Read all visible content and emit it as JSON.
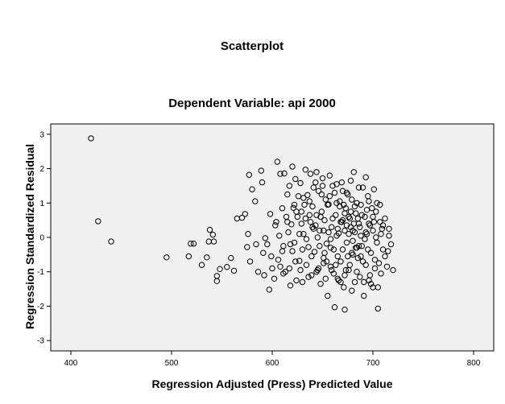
{
  "chart_data": {
    "type": "scatter",
    "title": "Scatterplot",
    "subtitle": "Dependent Variable: api 2000",
    "xlabel": "Regression Adjusted (Press) Predicted Value",
    "ylabel": "Regression Standardized Residual",
    "xlim": [
      380,
      820
    ],
    "ylim": [
      -3.3,
      3.3
    ],
    "xticks": [
      400,
      500,
      600,
      700,
      800
    ],
    "yticks": [
      -3,
      -2,
      -1,
      0,
      1,
      2,
      3
    ],
    "grid": false,
    "marker": "open-circle",
    "colors": {
      "plot_background": "#f0f0f0",
      "marker": "#000000"
    },
    "points": [
      [
        420,
        2.88
      ],
      [
        427,
        0.47
      ],
      [
        440,
        -0.12
      ],
      [
        495,
        -0.58
      ],
      [
        517,
        -0.55
      ],
      [
        519,
        -0.18
      ],
      [
        522,
        -0.18
      ],
      [
        530,
        -0.8
      ],
      [
        535,
        -0.58
      ],
      [
        537,
        -0.12
      ],
      [
        538,
        0.22
      ],
      [
        541,
        0.08
      ],
      [
        542,
        -0.12
      ],
      [
        545,
        -1.12
      ],
      [
        545,
        -1.27
      ],
      [
        548,
        -0.92
      ],
      [
        555,
        -0.86
      ],
      [
        559,
        -0.6
      ],
      [
        562,
        -0.97
      ],
      [
        565,
        0.55
      ],
      [
        570,
        0.57
      ],
      [
        573,
        0.68
      ],
      [
        575,
        -0.28
      ],
      [
        576,
        0.1
      ],
      [
        577,
        1.82
      ],
      [
        578,
        -0.7
      ],
      [
        580,
        1.4
      ],
      [
        583,
        1.05
      ],
      [
        584,
        -0.2
      ],
      [
        586,
        -1.0
      ],
      [
        589,
        1.94
      ],
      [
        590,
        1.6
      ],
      [
        591,
        -0.45
      ],
      [
        593,
        -0.02
      ],
      [
        595,
        -0.2
      ],
      [
        597,
        -1.52
      ],
      [
        598,
        0.68
      ],
      [
        600,
        -0.9
      ],
      [
        602,
        -1.2
      ],
      [
        603,
        0.35
      ],
      [
        605,
        2.2
      ],
      [
        606,
        -0.65
      ],
      [
        607,
        0.05
      ],
      [
        608,
        1.85
      ],
      [
        610,
        -0.4
      ],
      [
        611,
        -1.05
      ],
      [
        612,
        1.86
      ],
      [
        614,
        0.6
      ],
      [
        615,
        1.25
      ],
      [
        617,
        -0.9
      ],
      [
        618,
        -1.4
      ],
      [
        619,
        0.38
      ],
      [
        620,
        2.06
      ],
      [
        621,
        0.86
      ],
      [
        622,
        -0.15
      ],
      [
        623,
        1.7
      ],
      [
        624,
        -1.25
      ],
      [
        625,
        0.6
      ],
      [
        626,
        1.2
      ],
      [
        627,
        -0.68
      ],
      [
        628,
        1.58
      ],
      [
        629,
        0.4
      ],
      [
        630,
        -1.3
      ],
      [
        631,
        0.1
      ],
      [
        632,
        0.95
      ],
      [
        633,
        1.97
      ],
      [
        634,
        -0.8
      ],
      [
        635,
        1.23
      ],
      [
        636,
        -0.28
      ],
      [
        637,
        0.65
      ],
      [
        638,
        1.85
      ],
      [
        639,
        -1.1
      ],
      [
        640,
        0.9
      ],
      [
        641,
        1.45
      ],
      [
        642,
        -0.42
      ],
      [
        643,
        0.35
      ],
      [
        644,
        1.9
      ],
      [
        645,
        -0.95
      ],
      [
        646,
        1.35
      ],
      [
        647,
        0.2
      ],
      [
        648,
        -1.35
      ],
      [
        649,
        0.75
      ],
      [
        650,
        1.72
      ],
      [
        651,
        -0.6
      ],
      [
        652,
        0.5
      ],
      [
        653,
        1.1
      ],
      [
        654,
        -0.18
      ],
      [
        655,
        -1.7
      ],
      [
        656,
        0.96
      ],
      [
        657,
        1.8
      ],
      [
        658,
        -0.85
      ],
      [
        659,
        0.3
      ],
      [
        660,
        1.5
      ],
      [
        661,
        -0.35
      ],
      [
        662,
        -2.03
      ],
      [
        663,
        0.65
      ],
      [
        664,
        1.55
      ],
      [
        665,
        -1.2
      ],
      [
        666,
        0.12
      ],
      [
        667,
        1.05
      ],
      [
        668,
        -0.7
      ],
      [
        669,
        0.45
      ],
      [
        670,
        1.35
      ],
      [
        671,
        -1.45
      ],
      [
        672,
        -2.1
      ],
      [
        673,
        0.85
      ],
      [
        674,
        -0.15
      ],
      [
        675,
        1.25
      ],
      [
        676,
        -0.95
      ],
      [
        677,
        0.55
      ],
      [
        678,
        1.65
      ],
      [
        679,
        -0.45
      ],
      [
        680,
        0.2
      ],
      [
        681,
        1.9
      ],
      [
        682,
        -1.3
      ],
      [
        683,
        0.7
      ],
      [
        684,
        1.0
      ],
      [
        685,
        -0.6
      ],
      [
        686,
        0.4
      ],
      [
        687,
        -1.15
      ],
      [
        688,
        0.95
      ],
      [
        689,
        -0.25
      ],
      [
        690,
        1.45
      ],
      [
        691,
        -1.7
      ],
      [
        692,
        0.6
      ],
      [
        693,
        -0.8
      ],
      [
        694,
        0.1
      ],
      [
        695,
        1.2
      ],
      [
        696,
        -1.25
      ],
      [
        697,
        0.35
      ],
      [
        698,
        -0.45
      ],
      [
        699,
        0.85
      ],
      [
        700,
        -1.45
      ],
      [
        701,
        1.4
      ],
      [
        702,
        -0.9
      ],
      [
        703,
        0.0
      ],
      [
        704,
        1.0
      ],
      [
        705,
        -2.07
      ],
      [
        706,
        -0.75
      ],
      [
        707,
        0.45
      ],
      [
        708,
        -1.05
      ],
      [
        709,
        0.25
      ],
      [
        710,
        -0.35
      ],
      [
        712,
        0.55
      ],
      [
        714,
        -0.85
      ],
      [
        716,
        0.25
      ],
      [
        718,
        -0.2
      ],
      [
        720,
        -0.95
      ],
      [
        716,
        0.05
      ],
      [
        712,
        -0.55
      ],
      [
        634,
        -0.05
      ],
      [
        641,
        0.25
      ],
      [
        648,
        0.6
      ],
      [
        655,
        0.95
      ],
      [
        662,
        1.3
      ],
      [
        669,
        1.6
      ],
      [
        676,
        0.1
      ],
      [
        683,
        -0.3
      ],
      [
        690,
        -0.7
      ],
      [
        697,
        -1.1
      ],
      [
        639,
        -0.55
      ],
      [
        646,
        -0.9
      ],
      [
        653,
        -1.2
      ],
      [
        660,
        0.55
      ],
      [
        667,
        0.9
      ],
      [
        674,
        1.3
      ],
      [
        681,
        0.4
      ],
      [
        688,
        0.05
      ],
      [
        695,
        -0.35
      ],
      [
        702,
        -0.65
      ],
      [
        628,
        -0.95
      ],
      [
        636,
        -1.15
      ],
      [
        644,
        -1.0
      ],
      [
        651,
        -0.75
      ],
      [
        658,
        -0.3
      ],
      [
        665,
        0.25
      ],
      [
        672,
        0.7
      ],
      [
        679,
        1.1
      ],
      [
        686,
        1.45
      ],
      [
        693,
        1.75
      ],
      [
        620,
        -0.4
      ],
      [
        627,
        0.1
      ],
      [
        633,
        0.55
      ],
      [
        640,
        0.3
      ],
      [
        647,
        -0.25
      ],
      [
        654,
        -0.7
      ],
      [
        661,
        -1.05
      ],
      [
        668,
        -1.3
      ],
      [
        675,
        -0.55
      ],
      [
        682,
        0.15
      ],
      [
        689,
        0.65
      ],
      [
        696,
        1.05
      ],
      [
        703,
        0.75
      ],
      [
        710,
        0.35
      ],
      [
        613,
        -1.0
      ],
      [
        618,
        -0.2
      ],
      [
        624,
        0.75
      ],
      [
        631,
        1.15
      ],
      [
        638,
        0.45
      ],
      [
        645,
        0.0
      ],
      [
        652,
        -0.45
      ],
      [
        659,
        -0.95
      ],
      [
        666,
        -1.25
      ],
      [
        673,
        -0.95
      ],
      [
        680,
        -0.5
      ],
      [
        687,
        0.3
      ],
      [
        694,
        0.8
      ],
      [
        701,
        0.45
      ],
      [
        708,
        0.1
      ],
      [
        715,
        -0.4
      ],
      [
        608,
        -0.85
      ],
      [
        616,
        0.15
      ],
      [
        623,
        -0.7
      ],
      [
        630,
        -0.35
      ],
      [
        637,
        1.05
      ],
      [
        644,
        0.65
      ],
      [
        651,
        0.2
      ],
      [
        658,
        -0.05
      ],
      [
        665,
        -0.55
      ],
      [
        672,
        -1.1
      ],
      [
        679,
        -1.55
      ],
      [
        686,
        -0.25
      ],
      [
        693,
        0.15
      ],
      [
        700,
        0.6
      ],
      [
        707,
        0.95
      ],
      [
        670,
        0.5
      ],
      [
        674,
        0.35
      ],
      [
        678,
        0.75
      ],
      [
        682,
        0.9
      ],
      [
        676,
        0.6
      ],
      [
        672,
        0.2
      ],
      [
        668,
        0.45
      ],
      [
        664,
        0.05
      ],
      [
        680,
        -0.1
      ],
      [
        684,
        -0.3
      ],
      [
        688,
        -0.55
      ],
      [
        692,
        -0.05
      ],
      [
        696,
        0.4
      ],
      [
        700,
        0.2
      ],
      [
        704,
        -0.15
      ],
      [
        610,
        0.85
      ],
      [
        615,
        0.45
      ],
      [
        622,
        0.95
      ],
      [
        629,
        0.75
      ],
      [
        650,
        1.5
      ],
      [
        657,
        1.2
      ],
      [
        664,
        1.0
      ],
      [
        671,
        0.95
      ],
      [
        678,
        0.3
      ],
      [
        685,
        0.55
      ],
      [
        592,
        -1.1
      ],
      [
        599,
        -0.55
      ],
      [
        604,
        0.45
      ],
      [
        611,
        -0.25
      ],
      [
        617,
        1.5
      ],
      [
        643,
        1.6
      ],
      [
        649,
        1.25
      ],
      [
        656,
        0.15
      ],
      [
        663,
        -0.8
      ],
      [
        670,
        -0.35
      ],
      [
        677,
        -0.8
      ],
      [
        684,
        -1.0
      ],
      [
        691,
        -1.3
      ],
      [
        698,
        -1.35
      ],
      [
        705,
        -1.45
      ]
    ]
  }
}
